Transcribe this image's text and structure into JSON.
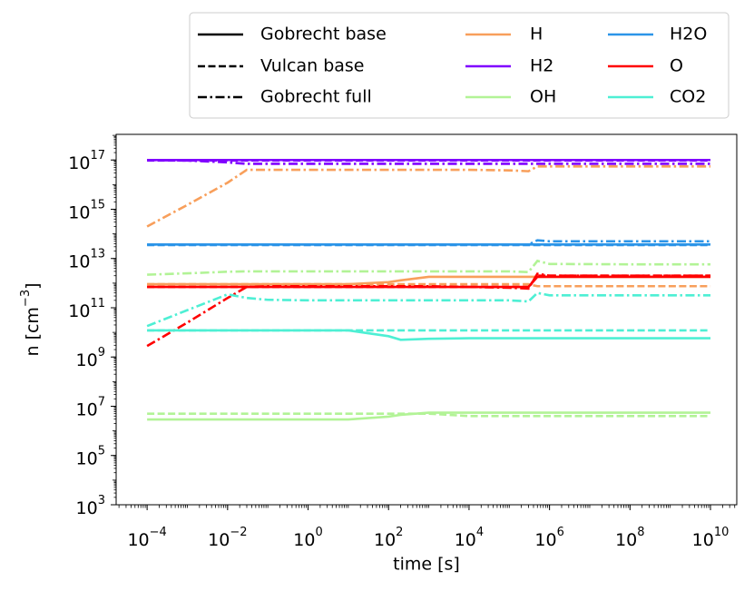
{
  "chart_data": {
    "type": "line",
    "xlabel": "time [s]",
    "ylabel": "n [cm",
    "ylabel_exponent": "−3",
    "ylabel_end": "]",
    "xscale": "log",
    "yscale": "log",
    "xlim": [
      1.7e-05,
      45000000000.0
    ],
    "ylim": [
      1000,
      1.1e+18
    ],
    "xticks": [
      {
        "value": 0.0001,
        "label": "10",
        "exponent": "−4"
      },
      {
        "value": 0.01,
        "label": "10",
        "exponent": "−2"
      },
      {
        "value": 1,
        "label": "10",
        "exponent": "0"
      },
      {
        "value": 100,
        "label": "10",
        "exponent": "2"
      },
      {
        "value": 10000,
        "label": "10",
        "exponent": "4"
      },
      {
        "value": 1000000,
        "label": "10",
        "exponent": "6"
      },
      {
        "value": 100000000,
        "label": "10",
        "exponent": "8"
      },
      {
        "value": 10000000000,
        "label": "10",
        "exponent": "10"
      }
    ],
    "yticks": [
      {
        "value": 1000,
        "label": "10",
        "exponent": "3"
      },
      {
        "value": 100000,
        "label": "10",
        "exponent": "5"
      },
      {
        "value": 10000000,
        "label": "10",
        "exponent": "7"
      },
      {
        "value": 1000000000,
        "label": "10",
        "exponent": "9"
      },
      {
        "value": 100000000000,
        "label": "10",
        "exponent": "11"
      },
      {
        "value": 10000000000000,
        "label": "10",
        "exponent": "13"
      },
      {
        "value": 1000000000000000,
        "label": "10",
        "exponent": "15"
      },
      {
        "value": 100000000000000000,
        "label": "10",
        "exponent": "17"
      }
    ],
    "linestyles": [
      {
        "name": "Gobrecht base",
        "dash": "solid"
      },
      {
        "name": "Vulcan base",
        "dash": "dashed"
      },
      {
        "name": "Gobrecht full",
        "dash": "dashdot"
      }
    ],
    "x": [
      0.0001,
      0.001,
      0.01,
      0.03,
      0.1,
      1,
      10,
      100,
      200,
      1000,
      10000,
      100000,
      300000,
      500000,
      1000000,
      100000000,
      10000000000
    ],
    "series": [
      {
        "name": "H",
        "color": "#f89f5b",
        "linestyle": "dashdot",
        "values": [
          200000000000000.0,
          1500000000000000.0,
          1.2e+16,
          4e+16,
          4e+16,
          4e+16,
          4e+16,
          4e+16,
          4e+16,
          4e+16,
          4e+16,
          3.8e+16,
          3.5e+16,
          5.5e+16,
          5.5e+16,
          5.5e+16,
          5.5e+16
        ]
      },
      {
        "name": "H",
        "color": "#f89f5b",
        "linestyle": "dashed",
        "values": [
          900000000000.0,
          900000000000.0,
          900000000000.0,
          900000000000.0,
          900000000000.0,
          900000000000.0,
          900000000000.0,
          900000000000.0,
          900000000000.0,
          900000000000.0,
          900000000000.0,
          900000000000.0,
          900000000000.0,
          750000000000.0,
          750000000000.0,
          750000000000.0,
          750000000000.0
        ]
      },
      {
        "name": "H",
        "color": "#f89f5b",
        "linestyle": "solid",
        "values": [
          900000000000.0,
          900000000000.0,
          900000000000.0,
          900000000000.0,
          900000000000.0,
          900000000000.0,
          900000000000.0,
          1100000000000.0,
          1300000000000.0,
          1800000000000.0,
          1800000000000.0,
          1800000000000.0,
          1800000000000.0,
          1800000000000.0,
          1800000000000.0,
          1800000000000.0,
          1800000000000.0
        ]
      },
      {
        "name": "H2",
        "color": "#8000ff",
        "linestyle": "dashdot",
        "values": [
          1e+17,
          9.5e+16,
          8e+16,
          7e+16,
          7e+16,
          7e+16,
          7e+16,
          7e+16,
          7e+16,
          7e+16,
          7e+16,
          7e+16,
          7e+16,
          7e+16,
          7e+16,
          7e+16,
          7e+16
        ]
      },
      {
        "name": "H2",
        "color": "#8000ff",
        "linestyle": "dashed",
        "values": [
          9.5e+16,
          9.5e+16,
          9.5e+16,
          9.5e+16,
          9.5e+16,
          9.5e+16,
          9.5e+16,
          9.5e+16,
          9.5e+16,
          9.5e+16,
          9.5e+16,
          9.5e+16,
          9.5e+16,
          9.5e+16,
          9.5e+16,
          9.5e+16,
          9.5e+16
        ]
      },
      {
        "name": "H2",
        "color": "#8000ff",
        "linestyle": "solid",
        "values": [
          1e+17,
          1e+17,
          1e+17,
          1e+17,
          1e+17,
          1e+17,
          1e+17,
          1e+17,
          1e+17,
          1e+17,
          1e+17,
          1e+17,
          1e+17,
          1e+17,
          1e+17,
          1e+17,
          1e+17
        ]
      },
      {
        "name": "OH",
        "color": "#b2f396",
        "linestyle": "dashdot",
        "values": [
          2200000000000.0,
          2500000000000.0,
          2900000000000.0,
          3000000000000.0,
          3000000000000.0,
          3000000000000.0,
          3000000000000.0,
          3000000000000.0,
          3000000000000.0,
          3000000000000.0,
          3000000000000.0,
          3000000000000.0,
          2800000000000.0,
          8000000000000.0,
          6000000000000.0,
          5800000000000.0,
          5800000000000.0
        ]
      },
      {
        "name": "OH",
        "color": "#b2f396",
        "linestyle": "dashed",
        "values": [
          5000000.0,
          5000000.0,
          5000000.0,
          5000000.0,
          5000000.0,
          5000000.0,
          5000000.0,
          5000000.0,
          5000000.0,
          5000000.0,
          4000000.0,
          4000000.0,
          4000000.0,
          4000000.0,
          4000000.0,
          4000000.0,
          4000000.0
        ]
      },
      {
        "name": "OH",
        "color": "#b2f396",
        "linestyle": "solid",
        "values": [
          2900000.0,
          2900000.0,
          2900000.0,
          2900000.0,
          2900000.0,
          2900000.0,
          2900000.0,
          3800000.0,
          4500000.0,
          5500000.0,
          5500000.0,
          5500000.0,
          5500000.0,
          5500000.0,
          5500000.0,
          5500000.0,
          5500000.0
        ]
      },
      {
        "name": "H2O",
        "color": "#2c95e8",
        "linestyle": "dashdot",
        "values": [
          37000000000000.0,
          37000000000000.0,
          37000000000000.0,
          37000000000000.0,
          37000000000000.0,
          37000000000000.0,
          37000000000000.0,
          37000000000000.0,
          37000000000000.0,
          37000000000000.0,
          37000000000000.0,
          37000000000000.0,
          37000000000000.0,
          55000000000000.0,
          50000000000000.0,
          50000000000000.0,
          50000000000000.0
        ]
      },
      {
        "name": "H2O",
        "color": "#2c95e8",
        "linestyle": "dashed",
        "values": [
          35000000000000.0,
          35000000000000.0,
          35000000000000.0,
          35000000000000.0,
          35000000000000.0,
          35000000000000.0,
          35000000000000.0,
          35000000000000.0,
          35000000000000.0,
          35000000000000.0,
          35000000000000.0,
          35000000000000.0,
          35000000000000.0,
          35000000000000.0,
          35000000000000.0,
          35000000000000.0,
          35000000000000.0
        ]
      },
      {
        "name": "H2O",
        "color": "#2c95e8",
        "linestyle": "solid",
        "values": [
          37000000000000.0,
          37000000000000.0,
          37000000000000.0,
          37000000000000.0,
          37000000000000.0,
          37000000000000.0,
          37000000000000.0,
          37000000000000.0,
          37000000000000.0,
          37000000000000.0,
          37000000000000.0,
          37000000000000.0,
          37000000000000.0,
          37000000000000.0,
          37000000000000.0,
          37000000000000.0,
          37000000000000.0
        ]
      },
      {
        "name": "O",
        "color": "#ff0000",
        "linestyle": "solid",
        "values": [
          700000000000.0,
          700000000000.0,
          700000000000.0,
          700000000000.0,
          700000000000.0,
          700000000000.0,
          700000000000.0,
          700000000000.0,
          700000000000.0,
          700000000000.0,
          700000000000.0,
          700000000000.0,
          700000000000.0,
          1800000000000.0,
          1800000000000.0,
          1800000000000.0,
          1800000000000.0
        ]
      },
      {
        "name": "O",
        "color": "#ff0000",
        "linestyle": "dashed",
        "values": [
          700000000000.0,
          700000000000.0,
          700000000000.0,
          700000000000.0,
          700000000000.0,
          700000000000.0,
          700000000000.0,
          700000000000.0,
          700000000000.0,
          700000000000.0,
          700000000000.0,
          700000000000.0,
          700000000000.0,
          2000000000000.0,
          2000000000000.0,
          2000000000000.0,
          2000000000000.0
        ]
      },
      {
        "name": "O",
        "color": "#ff0000",
        "linestyle": "dashdot",
        "values": [
          2800000000.0,
          25000000000.0,
          250000000000.0,
          700000000000.0,
          750000000000.0,
          750000000000.0,
          750000000000.0,
          750000000000.0,
          750000000000.0,
          750000000000.0,
          700000000000.0,
          650000000000.0,
          600000000000.0,
          2400000000000.0,
          2000000000000.0,
          2000000000000.0,
          2000000000000.0
        ]
      },
      {
        "name": "CO2",
        "color": "#4eefd4",
        "linestyle": "dashdot",
        "values": [
          18000000000.0,
          80000000000.0,
          350000000000.0,
          250000000000.0,
          210000000000.0,
          200000000000.0,
          200000000000.0,
          200000000000.0,
          200000000000.0,
          200000000000.0,
          200000000000.0,
          200000000000.0,
          180000000000.0,
          400000000000.0,
          320000000000.0,
          320000000000.0,
          320000000000.0
        ]
      },
      {
        "name": "CO2",
        "color": "#4eefd4",
        "linestyle": "dashed",
        "values": [
          12000000000.0,
          12000000000.0,
          12000000000.0,
          12000000000.0,
          12000000000.0,
          12000000000.0,
          12000000000.0,
          12000000000.0,
          12000000000.0,
          12000000000.0,
          12000000000.0,
          12000000000.0,
          12000000000.0,
          12000000000.0,
          12000000000.0,
          12000000000.0,
          12000000000.0
        ]
      },
      {
        "name": "CO2",
        "color": "#4eefd4",
        "linestyle": "solid",
        "values": [
          12000000000.0,
          12000000000.0,
          12000000000.0,
          12000000000.0,
          12000000000.0,
          12000000000.0,
          12000000000.0,
          7000000000.0,
          5000000000.0,
          5500000000.0,
          5800000000.0,
          5800000000.0,
          5800000000.0,
          5800000000.0,
          5800000000.0,
          5800000000.0,
          5800000000.0
        ]
      }
    ]
  }
}
